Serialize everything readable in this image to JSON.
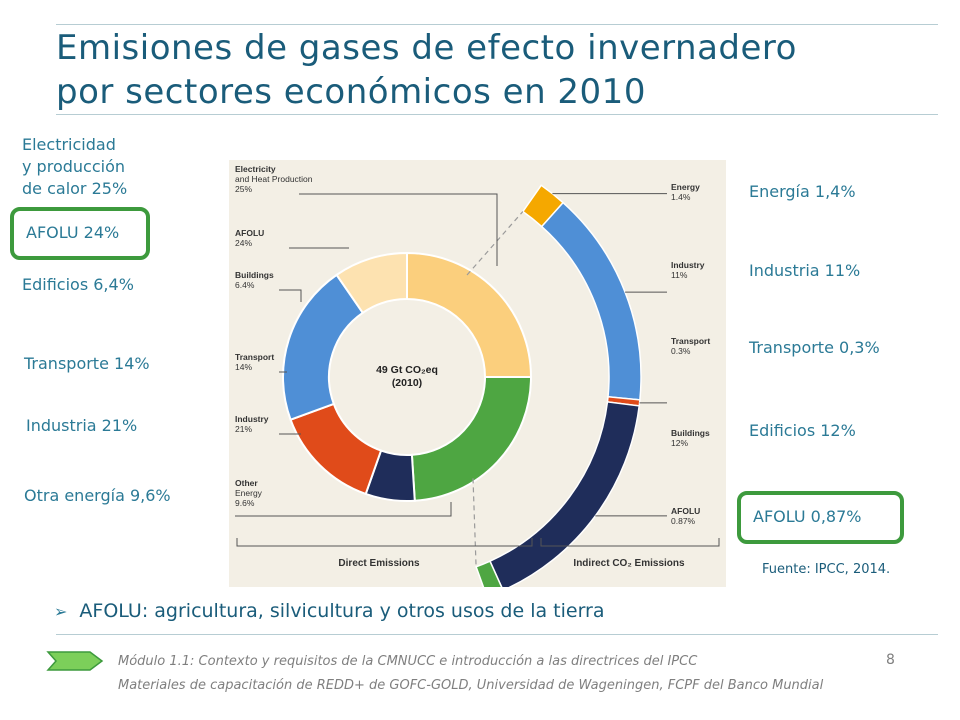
{
  "title_line1": "Emisiones de gases de efecto invernadero",
  "title_line2": "por sectores económicos en 2010",
  "left_labels": {
    "electricity_l1": "Electricidad",
    "electricity_l2": "y producción",
    "electricity_l3": "de calor 25%",
    "afolu": "AFOLU 24%",
    "buildings": "Edificios 6,4%",
    "transport": "Transporte 14%",
    "industry": "Industria 21%",
    "other_energy": "Otra energía 9,6%"
  },
  "right_labels": {
    "energy": "Energía 1,4%",
    "industry": "Industria 11%",
    "transport": "Transporte 0,3%",
    "buildings": "Edificios 12%",
    "afolu": "AFOLU 0,87%"
  },
  "source": "Fuente: IPCC, 2014.",
  "bullet": "AFOLU: agricultura, silvicultura y otros usos de la tierra",
  "footer_line1": "Módulo 1.1: Contexto y requisitos de la CMNUCC e introducción a las directrices del IPCC",
  "footer_line2": "Materiales de capacitación de REDD+ de GOFC-GOLD, Universidad de Wageningen, FCPF del Banco Mundial",
  "page_number": "8",
  "colors": {
    "title": "#1a5c7a",
    "label": "#2b7a96",
    "highlight_box": "#3d9a3d",
    "electricity": "#fbcf7d",
    "afolu": "#4ea642",
    "buildings": "#1f2d5a",
    "transport": "#e04b1a",
    "industry": "#4f8fd6",
    "other_energy": "#fde2b0",
    "energy_indirect": "#f5a800"
  },
  "chart_data": {
    "type": "pie",
    "center_label_l1": "49 Gt CO₂eq",
    "center_label_l2": "(2010)",
    "direct": [
      {
        "l1": "Electricity",
        "l2": "and Heat Production",
        "l3": "25%",
        "value": 25,
        "color": "#fbcf7d"
      },
      {
        "l1": "AFOLU",
        "l2": "24%",
        "value": 24,
        "color": "#4ea642"
      },
      {
        "l1": "Buildings",
        "l2": "6.4%",
        "value": 6.4,
        "color": "#1f2d5a"
      },
      {
        "l1": "Transport",
        "l2": "14%",
        "value": 14,
        "color": "#e04b1a"
      },
      {
        "l1": "Industry",
        "l2": "21%",
        "value": 21,
        "color": "#4f8fd6"
      },
      {
        "l1": "Other",
        "l2": "Energy",
        "l3": "9.6%",
        "value": 9.6,
        "color": "#fde2b0"
      }
    ],
    "indirect": [
      {
        "l1": "Energy",
        "l2": "1.4%",
        "value": 1.4,
        "color": "#f5a800"
      },
      {
        "l1": "Industry",
        "l2": "11%",
        "value": 11,
        "color": "#4f8fd6"
      },
      {
        "l1": "Transport",
        "l2": "0.3%",
        "value": 0.3,
        "color": "#e04b1a"
      },
      {
        "l1": "Buildings",
        "l2": "12%",
        "value": 12,
        "color": "#1f2d5a"
      },
      {
        "l1": "AFOLU",
        "l2": "0.87%",
        "value": 0.87,
        "color": "#4ea642"
      }
    ],
    "bottom_labels": {
      "direct": "Direct Emissions",
      "indirect": "Indirect CO₂ Emissions"
    }
  }
}
